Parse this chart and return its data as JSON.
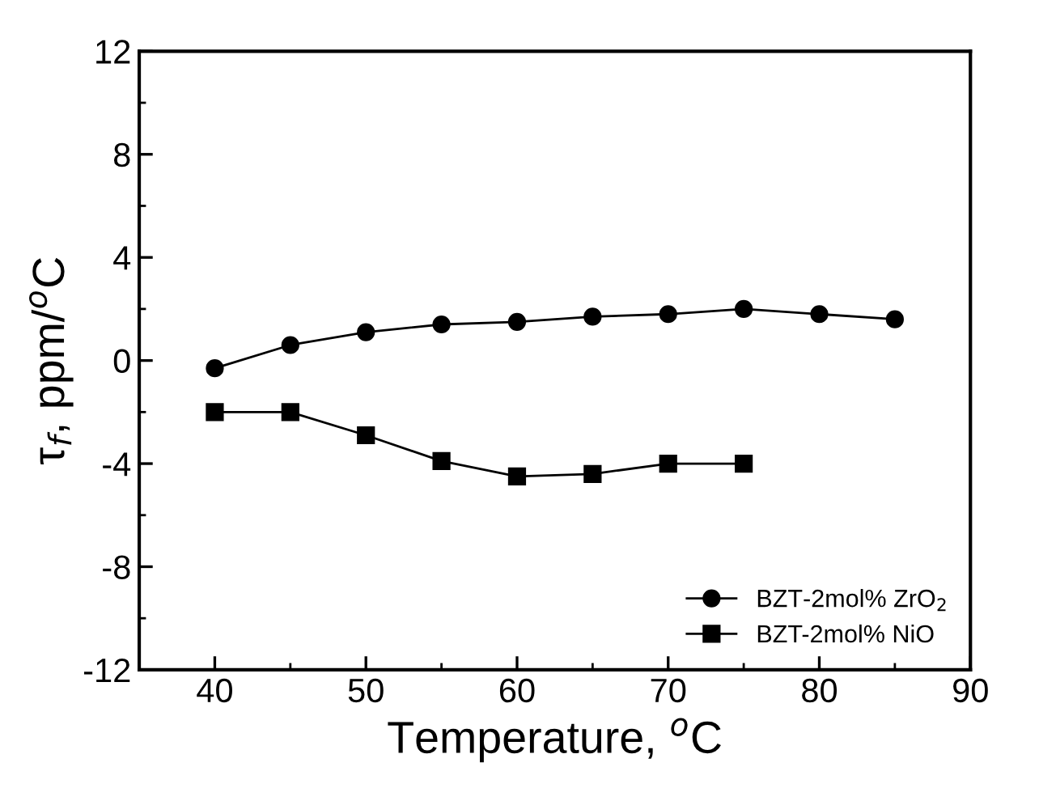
{
  "chart_data": {
    "type": "line",
    "xlabel": "Temperature, $^{o}$C",
    "ylabel": "τ$_{f}$, ppm/$^{o}$C",
    "x": [
      40,
      45,
      50,
      55,
      60,
      65,
      70,
      75,
      80,
      85
    ],
    "series": [
      {
        "name": "BZT-2mol% ZrO$_{2}$",
        "color": "#000000",
        "marker": "circle",
        "values": [
          -0.3,
          0.6,
          1.1,
          1.4,
          1.5,
          1.7,
          1.8,
          2.0,
          1.8,
          1.6
        ]
      },
      {
        "name": "BZT-2mol% NiO",
        "color": "#000000",
        "marker": "square",
        "values": [
          -2.0,
          -2.0,
          -2.9,
          -3.9,
          -4.5,
          -4.4,
          -4.0,
          -4.0,
          null,
          null
        ]
      }
    ],
    "xlim": [
      35,
      90
    ],
    "ylim": [
      -12,
      12
    ],
    "xticks": [
      40,
      50,
      60,
      70,
      80,
      90
    ],
    "yticks": [
      -12,
      -8,
      -4,
      0,
      4,
      8,
      12
    ],
    "grid": false,
    "legend": "bottom right",
    "line_style": "solid"
  }
}
